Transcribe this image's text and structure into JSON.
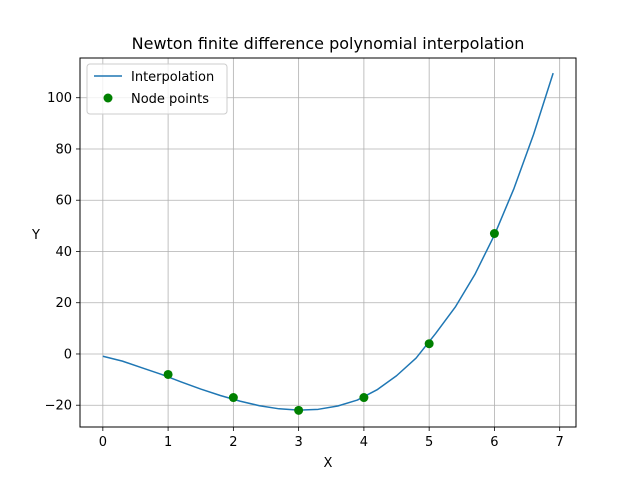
{
  "chart_data": {
    "type": "line",
    "title": "Newton finite difference polynomial interpolation",
    "xlabel": "X",
    "ylabel": "Y",
    "xlim": [
      -0.35,
      7.25
    ],
    "ylim": [
      -28.5,
      115.5
    ],
    "xticks": [
      0,
      1,
      2,
      3,
      4,
      5,
      6,
      7
    ],
    "yticks": [
      -20,
      0,
      20,
      40,
      60,
      80,
      100
    ],
    "ytick_labels": [
      "−20",
      "0",
      "20",
      "40",
      "60",
      "80",
      "100"
    ],
    "grid": true,
    "legend_position": "top-left",
    "series": [
      {
        "name": "Interpolation",
        "kind": "line",
        "color": "#1f77b4",
        "x": [
          0.0,
          0.3,
          0.6,
          0.9,
          1.2,
          1.5,
          1.8,
          2.1,
          2.4,
          2.7,
          3.0,
          3.3,
          3.6,
          3.9,
          4.2,
          4.5,
          4.8,
          5.1,
          5.4,
          5.7,
          6.0,
          6.3,
          6.6,
          6.9
        ],
        "y": [
          -0.9,
          -2.8,
          -5.4,
          -8.0,
          -10.9,
          -13.7,
          -16.2,
          -18.4,
          -20.2,
          -21.4,
          -21.9,
          -21.6,
          -20.3,
          -18.0,
          -14.0,
          -8.5,
          -1.6,
          8.0,
          18.3,
          31.0,
          46.4,
          64.6,
          85.7,
          109.6
        ]
      },
      {
        "name": "Node points",
        "kind": "scatter",
        "color": "#008000",
        "x": [
          1,
          2,
          3,
          4,
          5,
          6
        ],
        "y": [
          -8,
          -17,
          -22,
          -17,
          4,
          47
        ]
      }
    ]
  }
}
